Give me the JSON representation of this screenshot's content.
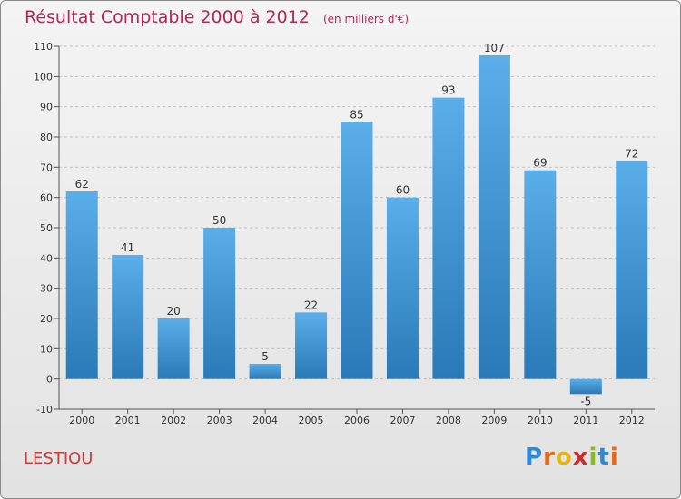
{
  "header": {
    "title": "Résultat Comptable 2000 à 2012",
    "subtitle": "(en milliers d'€)"
  },
  "footer": {
    "place": "LESTIOU",
    "logo_letters": [
      "P",
      "r",
      "o",
      "x",
      "i",
      "t",
      "i"
    ],
    "logo_colors": [
      "#2f8ad6",
      "#e36a18",
      "#e8b510",
      "#d02a2a",
      "#8ab829",
      "#2f8ad6",
      "#e36a18"
    ]
  },
  "chart_data": {
    "type": "bar",
    "title": "Résultat Comptable 2000 à 2012",
    "subtitle": "(en milliers d'€)",
    "categories": [
      "2000",
      "2001",
      "2002",
      "2003",
      "2004",
      "2005",
      "2006",
      "2007",
      "2008",
      "2009",
      "2010",
      "2011",
      "2012"
    ],
    "values": [
      62,
      41,
      20,
      50,
      5,
      22,
      85,
      60,
      93,
      107,
      69,
      -5,
      72
    ],
    "data_labels": [
      "62",
      "41",
      "20",
      "50",
      "5",
      "22",
      "85",
      "60",
      "93",
      "107",
      "69",
      "-5",
      "72"
    ],
    "ylim": [
      -10,
      110
    ],
    "yticks": [
      "-10",
      "0",
      "10",
      "20",
      "30",
      "40",
      "50",
      "60",
      "70",
      "80",
      "90",
      "100",
      "110"
    ],
    "grid": "horizontal dashed",
    "bar_color_top": "#5aaee9",
    "bar_color_bottom": "#2a79b8",
    "xlabel": "",
    "ylabel": ""
  }
}
